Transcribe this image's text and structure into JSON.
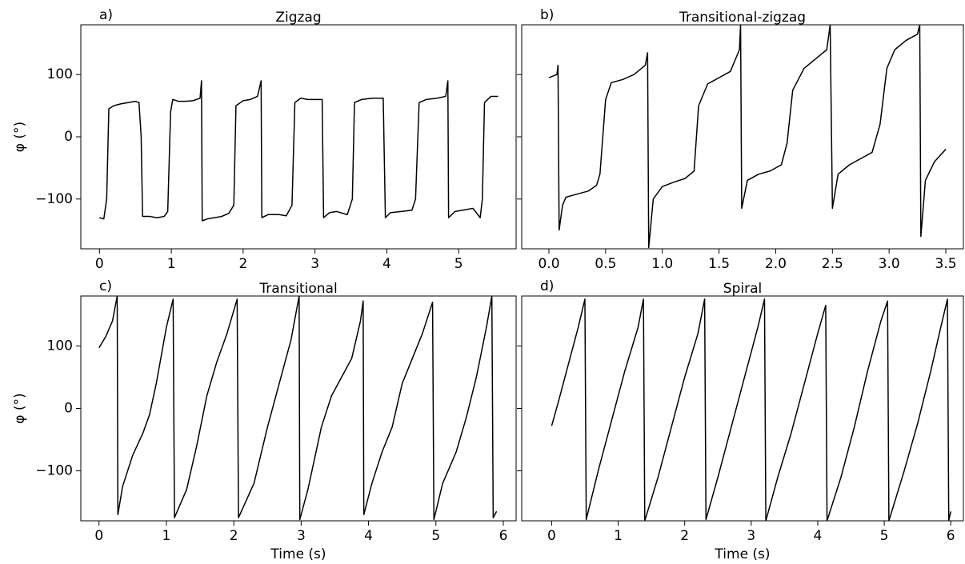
{
  "chart_data": [
    {
      "type": "line",
      "panel_label": "a)",
      "title": "Zigzag",
      "ylabel": "φ (°)",
      "color": "#000000",
      "x": [
        0,
        0.06,
        0.1,
        0.13,
        0.2,
        0.3,
        0.4,
        0.5,
        0.55,
        0.58,
        0.6,
        0.7,
        0.8,
        0.9,
        0.95,
        0.99,
        1.02,
        1.1,
        1.2,
        1.3,
        1.4,
        1.42,
        1.43,
        1.5,
        1.6,
        1.7,
        1.8,
        1.87,
        1.9,
        2.0,
        2.1,
        2.2,
        2.25,
        2.26,
        2.35,
        2.5,
        2.6,
        2.68,
        2.72,
        2.8,
        2.9,
        3.0,
        3.1,
        3.12,
        3.2,
        3.3,
        3.45,
        3.52,
        3.55,
        3.65,
        3.8,
        3.95,
        3.98,
        4.05,
        4.2,
        4.35,
        4.4,
        4.45,
        4.55,
        4.7,
        4.82,
        4.85,
        4.86,
        4.95,
        5.1,
        5.2,
        5.3,
        5.33,
        5.36,
        5.45,
        5.55
      ],
      "values": [
        -130,
        -132,
        -100,
        45,
        50,
        53,
        55,
        57,
        55,
        0,
        -128,
        -128,
        -130,
        -128,
        -120,
        40,
        60,
        57,
        57,
        58,
        62,
        90,
        -135,
        -132,
        -130,
        -128,
        -123,
        -110,
        50,
        58,
        60,
        65,
        90,
        -130,
        -125,
        -125,
        -127,
        -110,
        55,
        62,
        60,
        60,
        60,
        -130,
        -122,
        -120,
        -125,
        -100,
        55,
        60,
        62,
        62,
        -130,
        -122,
        -120,
        -118,
        -100,
        55,
        60,
        62,
        65,
        90,
        -130,
        -120,
        -117,
        -115,
        -130,
        -100,
        55,
        65,
        65
      ],
      "xlim": [
        -0.26,
        5.8
      ],
      "ylim": [
        -180,
        180
      ],
      "xticks": [
        0,
        1,
        2,
        3,
        4,
        5
      ],
      "yticks": [
        {
          "value": -100,
          "label": "−100"
        },
        0,
        100
      ],
      "show_yticklabels": true
    },
    {
      "type": "line",
      "panel_label": "b)",
      "title": "Transitional-zigzag",
      "color": "#000000",
      "x": [
        0,
        0.07,
        0.08,
        0.09,
        0.12,
        0.15,
        0.25,
        0.35,
        0.42,
        0.45,
        0.5,
        0.55,
        0.65,
        0.75,
        0.85,
        0.87,
        0.88,
        0.92,
        1.0,
        1.1,
        1.2,
        1.28,
        1.32,
        1.4,
        1.5,
        1.6,
        1.68,
        1.69,
        1.7,
        1.75,
        1.85,
        1.95,
        2.05,
        2.1,
        2.15,
        2.25,
        2.35,
        2.45,
        2.48,
        2.5,
        2.55,
        2.65,
        2.75,
        2.85,
        2.92,
        2.98,
        3.05,
        3.15,
        3.25,
        3.27,
        3.28,
        3.32,
        3.4,
        3.5
      ],
      "values": [
        95,
        100,
        115,
        -150,
        -110,
        -97,
        -92,
        -87,
        -78,
        -60,
        60,
        87,
        92,
        100,
        115,
        135,
        -178,
        -100,
        -80,
        -73,
        -67,
        -55,
        50,
        85,
        95,
        105,
        140,
        180,
        -115,
        -70,
        -60,
        -55,
        -45,
        -10,
        75,
        110,
        125,
        140,
        180,
        -115,
        -60,
        -45,
        -35,
        -25,
        20,
        110,
        140,
        155,
        165,
        180,
        -160,
        -70,
        -40,
        -20
      ],
      "xlim": [
        -0.24,
        3.655
      ],
      "ylim": [
        -180,
        180
      ],
      "xticks": [
        {
          "value": 0,
          "label": "0.0"
        },
        0.5,
        {
          "value": 1,
          "label": "1.0"
        },
        1.5,
        {
          "value": 2,
          "label": "2.0"
        },
        2.5,
        {
          "value": 3,
          "label": "3.0"
        },
        3.5
      ],
      "yticks": [
        -100,
        0,
        100
      ],
      "show_yticklabels": false
    },
    {
      "type": "line",
      "panel_label": "c)",
      "title": "Transitional",
      "ylabel": "φ (°)",
      "xlabel": "Time (s)",
      "color": "#000000",
      "x": [
        0,
        0.1,
        0.2,
        0.27,
        0.28,
        0.35,
        0.5,
        0.65,
        0.75,
        0.85,
        1.0,
        1.1,
        1.12,
        1.3,
        1.45,
        1.6,
        1.75,
        1.9,
        2.05,
        2.07,
        2.3,
        2.5,
        2.7,
        2.85,
        2.97,
        2.98,
        3.1,
        3.3,
        3.45,
        3.6,
        3.75,
        3.88,
        3.92,
        3.93,
        4.05,
        4.2,
        4.35,
        4.5,
        4.65,
        4.8,
        4.95,
        4.97,
        5.1,
        5.3,
        5.45,
        5.6,
        5.75,
        5.83,
        5.85,
        5.9
      ],
      "values": [
        97,
        115,
        140,
        180,
        -170,
        -125,
        -75,
        -40,
        -10,
        40,
        130,
        175,
        -175,
        -130,
        -60,
        20,
        75,
        120,
        175,
        -175,
        -120,
        -30,
        50,
        110,
        180,
        -178,
        -130,
        -30,
        20,
        50,
        80,
        140,
        172,
        -170,
        -120,
        -70,
        -30,
        40,
        80,
        120,
        170,
        -178,
        -120,
        -70,
        -15,
        50,
        130,
        180,
        -175,
        -165
      ],
      "xlim": [
        -0.27,
        6.19
      ],
      "ylim": [
        -180,
        180
      ],
      "xticks": [
        0,
        1,
        2,
        3,
        4,
        5,
        6
      ],
      "yticks": [
        {
          "value": -100,
          "label": "−100"
        },
        0,
        100
      ],
      "show_yticklabels": true
    },
    {
      "type": "line",
      "panel_label": "d)",
      "title": "Spiral",
      "xlabel": "Time (s)",
      "color": "#000000",
      "x": [
        0,
        0.1,
        0.25,
        0.4,
        0.5,
        0.52,
        0.7,
        0.9,
        1.1,
        1.3,
        1.38,
        1.4,
        1.6,
        1.8,
        2.0,
        2.2,
        2.3,
        2.32,
        2.5,
        2.7,
        2.9,
        3.1,
        3.2,
        3.22,
        3.4,
        3.6,
        3.8,
        4.0,
        4.12,
        4.14,
        4.35,
        4.55,
        4.75,
        4.95,
        5.05,
        5.07,
        5.3,
        5.5,
        5.7,
        5.85,
        5.95,
        5.97,
        6.0
      ],
      "values": [
        -28,
        10,
        70,
        130,
        175,
        -178,
        -100,
        -20,
        60,
        130,
        175,
        -180,
        -110,
        -30,
        50,
        120,
        175,
        -178,
        -110,
        -30,
        50,
        130,
        175,
        -180,
        -110,
        -40,
        40,
        120,
        165,
        -180,
        -110,
        -30,
        60,
        140,
        172,
        -180,
        -100,
        -25,
        60,
        130,
        175,
        -180,
        -165
      ],
      "xlim": [
        -0.45,
        6.19
      ],
      "ylim": [
        -180,
        180
      ],
      "xticks": [
        0,
        1,
        2,
        3,
        4,
        5,
        6
      ],
      "yticks": [
        -100,
        0,
        100
      ],
      "show_yticklabels": false
    }
  ]
}
